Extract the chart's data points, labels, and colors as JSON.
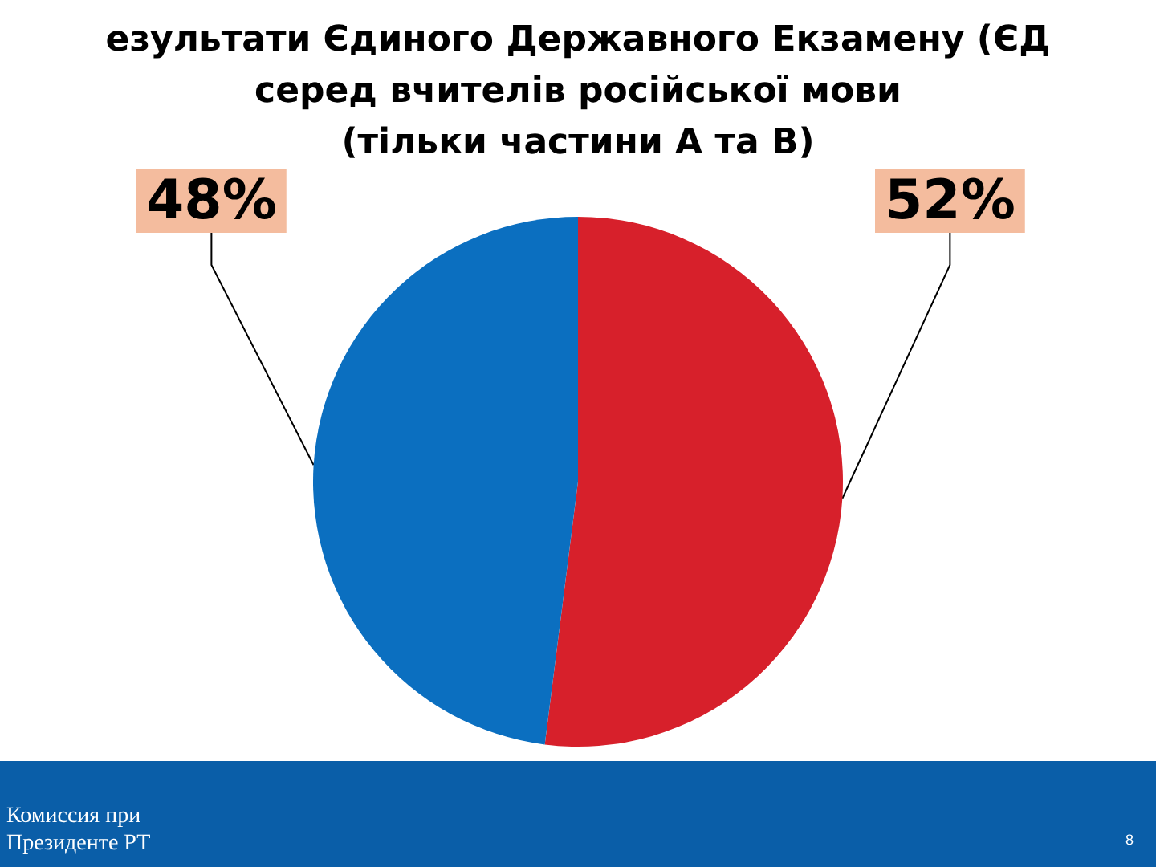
{
  "chart_data": {
    "type": "pie",
    "title": "езультати Єдиного Державного Екзамену (ЄД\nсеред вчителів російської мови\n(тільки частини А та В)",
    "categories": [
      null,
      null
    ],
    "values": [
      52,
      48
    ],
    "colors": [
      "#d7202b",
      "#0b6fc0"
    ],
    "value_labels": [
      "52%",
      "48%"
    ],
    "annotations": [
      "Комиссия при\nПрезиденте РТ",
      "8"
    ]
  }
}
